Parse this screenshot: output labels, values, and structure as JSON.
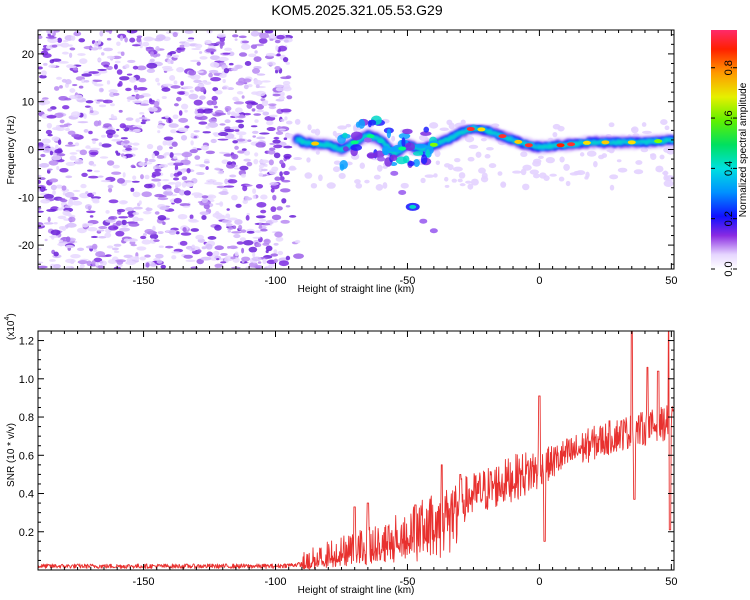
{
  "title": "KOM5.2025.321.05.53.G29",
  "chart_data": [
    {
      "type": "heatmap",
      "name": "spectrogram",
      "xlabel": "Height of straight line (km)",
      "ylabel": "Frequency (Hz)",
      "xlim": [
        -190,
        51
      ],
      "ylim": [
        -25,
        25
      ],
      "xticks": [
        -150,
        -100,
        -50,
        0,
        50
      ],
      "yticks": [
        -20,
        -10,
        0,
        10,
        20
      ],
      "colorbar": {
        "label": "Normalized spectral amplitude",
        "ticks": [
          "0.0",
          "0.2",
          "0.4",
          "0.6",
          "0.8"
        ],
        "range": [
          0,
          0.95
        ]
      },
      "ridge": [
        {
          "x": -90,
          "y": 1.5
        },
        {
          "x": -80,
          "y": 1.0
        },
        {
          "x": -75,
          "y": 0.0
        },
        {
          "x": -70,
          "y": 1.5
        },
        {
          "x": -65,
          "y": 3.0
        },
        {
          "x": -60,
          "y": 2.0
        },
        {
          "x": -55,
          "y": -1.0
        },
        {
          "x": -50,
          "y": 1.0
        },
        {
          "x": -45,
          "y": 0.0
        },
        {
          "x": -40,
          "y": 1.0
        },
        {
          "x": -35,
          "y": 2.0
        },
        {
          "x": -30,
          "y": 3.5
        },
        {
          "x": -25,
          "y": 4.5
        },
        {
          "x": -20,
          "y": 4.0
        },
        {
          "x": -15,
          "y": 3.0
        },
        {
          "x": -10,
          "y": 2.0
        },
        {
          "x": -5,
          "y": 1.0
        },
        {
          "x": 0,
          "y": 0.5
        },
        {
          "x": 10,
          "y": 1.0
        },
        {
          "x": 20,
          "y": 1.5
        },
        {
          "x": 30,
          "y": 1.5
        },
        {
          "x": 40,
          "y": 1.5
        },
        {
          "x": 50,
          "y": 2.0
        }
      ],
      "branch": [
        {
          "x": -65,
          "y": 2.0
        },
        {
          "x": -60,
          "y": -2.0
        },
        {
          "x": -55,
          "y": -5.0
        },
        {
          "x": -52,
          "y": -9.0
        },
        {
          "x": -48,
          "y": -12.0
        },
        {
          "x": -44,
          "y": -15.0
        },
        {
          "x": -40,
          "y": -17.0
        }
      ]
    },
    {
      "type": "line",
      "name": "snr",
      "xlabel": "Height of straight line (km)",
      "ylabel": "SNR (10 * v/v)",
      "yscale_note": "(x10",
      "yscale_exp": "4",
      "yscale_close": ")",
      "xlim": [
        -190,
        51
      ],
      "ylim": [
        0,
        1.25
      ],
      "xticks": [
        -150,
        -100,
        -50,
        0,
        50
      ],
      "yticks": [
        "0.2",
        "0.4",
        "0.6",
        "0.8",
        "1.0",
        "1.2"
      ],
      "series_color": "#e8312f",
      "trend": [
        {
          "x": -190,
          "y": 0.02
        },
        {
          "x": -100,
          "y": 0.02
        },
        {
          "x": -90,
          "y": 0.03
        },
        {
          "x": -80,
          "y": 0.08
        },
        {
          "x": -70,
          "y": 0.12
        },
        {
          "x": -60,
          "y": 0.14
        },
        {
          "x": -50,
          "y": 0.2
        },
        {
          "x": -40,
          "y": 0.26
        },
        {
          "x": -30,
          "y": 0.36
        },
        {
          "x": -20,
          "y": 0.42
        },
        {
          "x": -10,
          "y": 0.48
        },
        {
          "x": 0,
          "y": 0.53
        },
        {
          "x": 10,
          "y": 0.6
        },
        {
          "x": 20,
          "y": 0.66
        },
        {
          "x": 30,
          "y": 0.71
        },
        {
          "x": 40,
          "y": 0.74
        },
        {
          "x": 51,
          "y": 0.78
        }
      ],
      "spikes": [
        {
          "x": -70,
          "y": 0.33
        },
        {
          "x": -65,
          "y": 0.35
        },
        {
          "x": -47,
          "y": 0.34
        },
        {
          "x": -37,
          "y": 0.55
        },
        {
          "x": -30,
          "y": 0.5
        },
        {
          "x": 0,
          "y": 0.91
        },
        {
          "x": 2,
          "y": 0.15
        },
        {
          "x": 35,
          "y": 1.3
        },
        {
          "x": 36,
          "y": 0.37
        },
        {
          "x": 41,
          "y": 1.06
        },
        {
          "x": 45,
          "y": 1.04
        },
        {
          "x": 49,
          "y": 1.3
        },
        {
          "x": 49.5,
          "y": 0.21
        },
        {
          "x": 51,
          "y": 0.84
        }
      ]
    }
  ]
}
